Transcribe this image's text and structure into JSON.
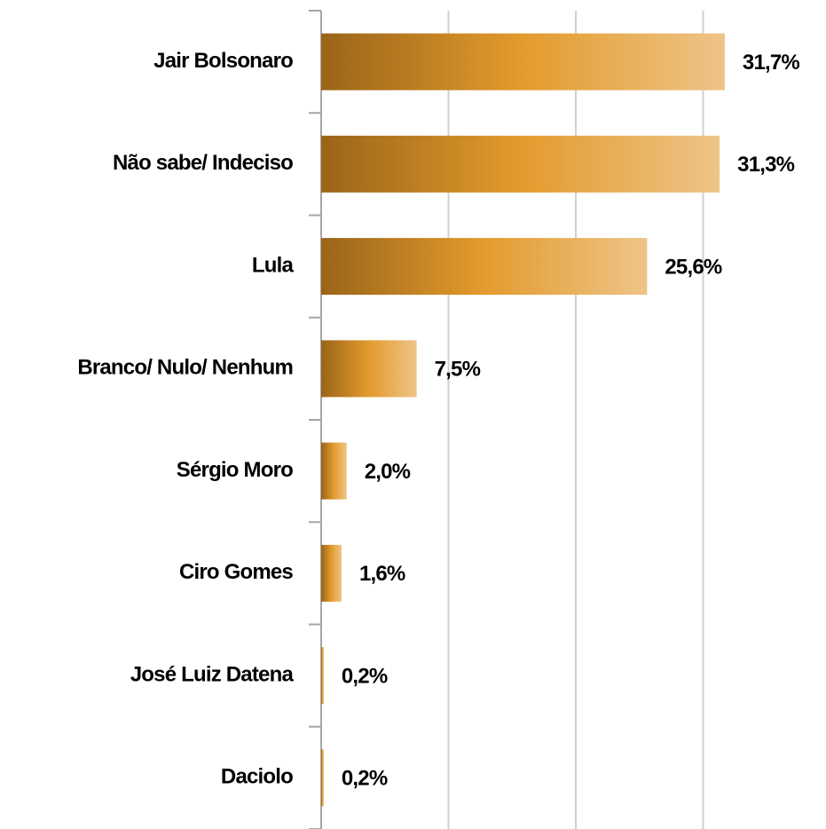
{
  "chart_data": {
    "type": "bar",
    "orientation": "horizontal",
    "categories": [
      "Jair Bolsonaro",
      "Não sabe/ Indeciso",
      "Lula",
      "Branco/ Nulo/ Nenhum",
      "Sérgio Moro",
      "Ciro Gomes",
      "José Luiz Datena",
      "Daciolo"
    ],
    "values": [
      31.7,
      31.3,
      25.6,
      7.5,
      2.0,
      1.6,
      0.2,
      0.2
    ],
    "value_labels": [
      "31,7%",
      "31,3%",
      "25,6%",
      "7,5%",
      "2,0%",
      "1,6%",
      "0,2%",
      "0,2%"
    ],
    "colors": [
      "#9a6418",
      "#e39b2d",
      "#eec488"
    ],
    "xlim": [
      0,
      40
    ],
    "xticks": [
      0,
      10,
      20,
      30
    ],
    "grid": true
  }
}
